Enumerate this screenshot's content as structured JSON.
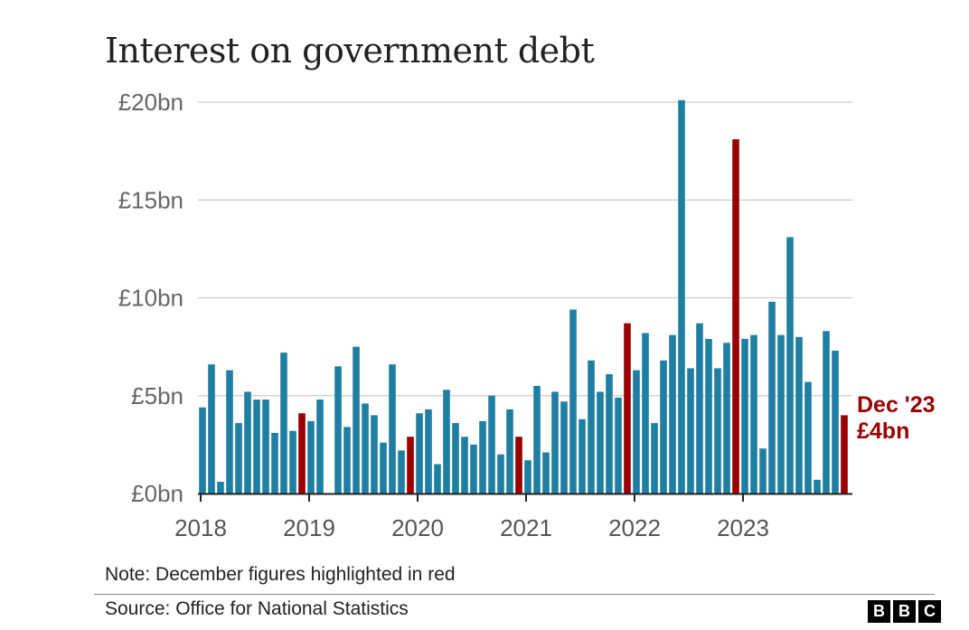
{
  "title": "Interest on government debt",
  "note": "Note: December figures highlighted in red",
  "source": "Source: Office for National Statistics",
  "logo": [
    "B",
    "B",
    "C"
  ],
  "colors": {
    "bar": "#1f7fa3",
    "highlight": "#990000",
    "grid": "#cccccc",
    "axis": "#222222"
  },
  "chart_data": {
    "type": "bar",
    "title": "Interest on government debt",
    "xlabel": "",
    "ylabel": "",
    "ylim": [
      0,
      20
    ],
    "yticks": [
      0,
      5,
      10,
      15,
      20
    ],
    "ytick_labels": [
      "£0bn",
      "£5bn",
      "£10bn",
      "£15bn",
      "£20bn"
    ],
    "xtick_labels": [
      "2018",
      "2019",
      "2020",
      "2021",
      "2022",
      "2023"
    ],
    "grid": true,
    "highlight": "December figures",
    "categories": [
      "Jan 2018",
      "Feb 2018",
      "Mar 2018",
      "Apr 2018",
      "May 2018",
      "Jun 2018",
      "Jul 2018",
      "Aug 2018",
      "Sep 2018",
      "Oct 2018",
      "Nov 2018",
      "Dec 2018",
      "Jan 2019",
      "Feb 2019",
      "Mar 2019",
      "Apr 2019",
      "May 2019",
      "Jun 2019",
      "Jul 2019",
      "Aug 2019",
      "Sep 2019",
      "Oct 2019",
      "Nov 2019",
      "Dec 2019",
      "Jan 2020",
      "Feb 2020",
      "Mar 2020",
      "Apr 2020",
      "May 2020",
      "Jun 2020",
      "Jul 2020",
      "Aug 2020",
      "Sep 2020",
      "Oct 2020",
      "Nov 2020",
      "Dec 2020",
      "Jan 2021",
      "Feb 2021",
      "Mar 2021",
      "Apr 2021",
      "May 2021",
      "Jun 2021",
      "Jul 2021",
      "Aug 2021",
      "Sep 2021",
      "Oct 2021",
      "Nov 2021",
      "Dec 2021",
      "Jan 2022",
      "Feb 2022",
      "Mar 2022",
      "Apr 2022",
      "May 2022",
      "Jun 2022",
      "Jul 2022",
      "Aug 2022",
      "Sep 2022",
      "Oct 2022",
      "Nov 2022",
      "Dec 2022",
      "Jan 2023",
      "Feb 2023",
      "Mar 2023",
      "Apr 2023",
      "May 2023",
      "Jun 2023",
      "Jul 2023",
      "Aug 2023",
      "Sep 2023",
      "Oct 2023",
      "Nov 2023",
      "Dec 2023"
    ],
    "values": [
      4.4,
      6.6,
      0.6,
      6.3,
      3.6,
      5.2,
      4.8,
      4.8,
      3.1,
      7.2,
      3.2,
      4.1,
      3.7,
      4.8,
      0.0,
      6.5,
      3.4,
      7.5,
      4.6,
      4.0,
      2.6,
      6.6,
      2.2,
      2.9,
      4.1,
      4.3,
      1.5,
      5.3,
      3.6,
      2.9,
      2.5,
      3.7,
      5.0,
      2.0,
      4.3,
      2.9,
      1.7,
      5.5,
      2.1,
      5.2,
      4.7,
      9.4,
      3.8,
      6.8,
      5.2,
      6.1,
      4.9,
      8.7,
      6.3,
      8.2,
      3.6,
      6.8,
      8.1,
      20.1,
      6.4,
      8.7,
      7.9,
      6.4,
      7.7,
      18.1,
      7.9,
      8.1,
      2.3,
      9.8,
      8.1,
      13.1,
      8.0,
      5.7,
      0.7,
      8.3,
      7.3,
      4.0
    ],
    "highlighted": [
      11,
      23,
      35,
      47,
      59,
      71
    ],
    "annotation": {
      "label": "Dec '23",
      "value_label": "£4bn"
    }
  }
}
